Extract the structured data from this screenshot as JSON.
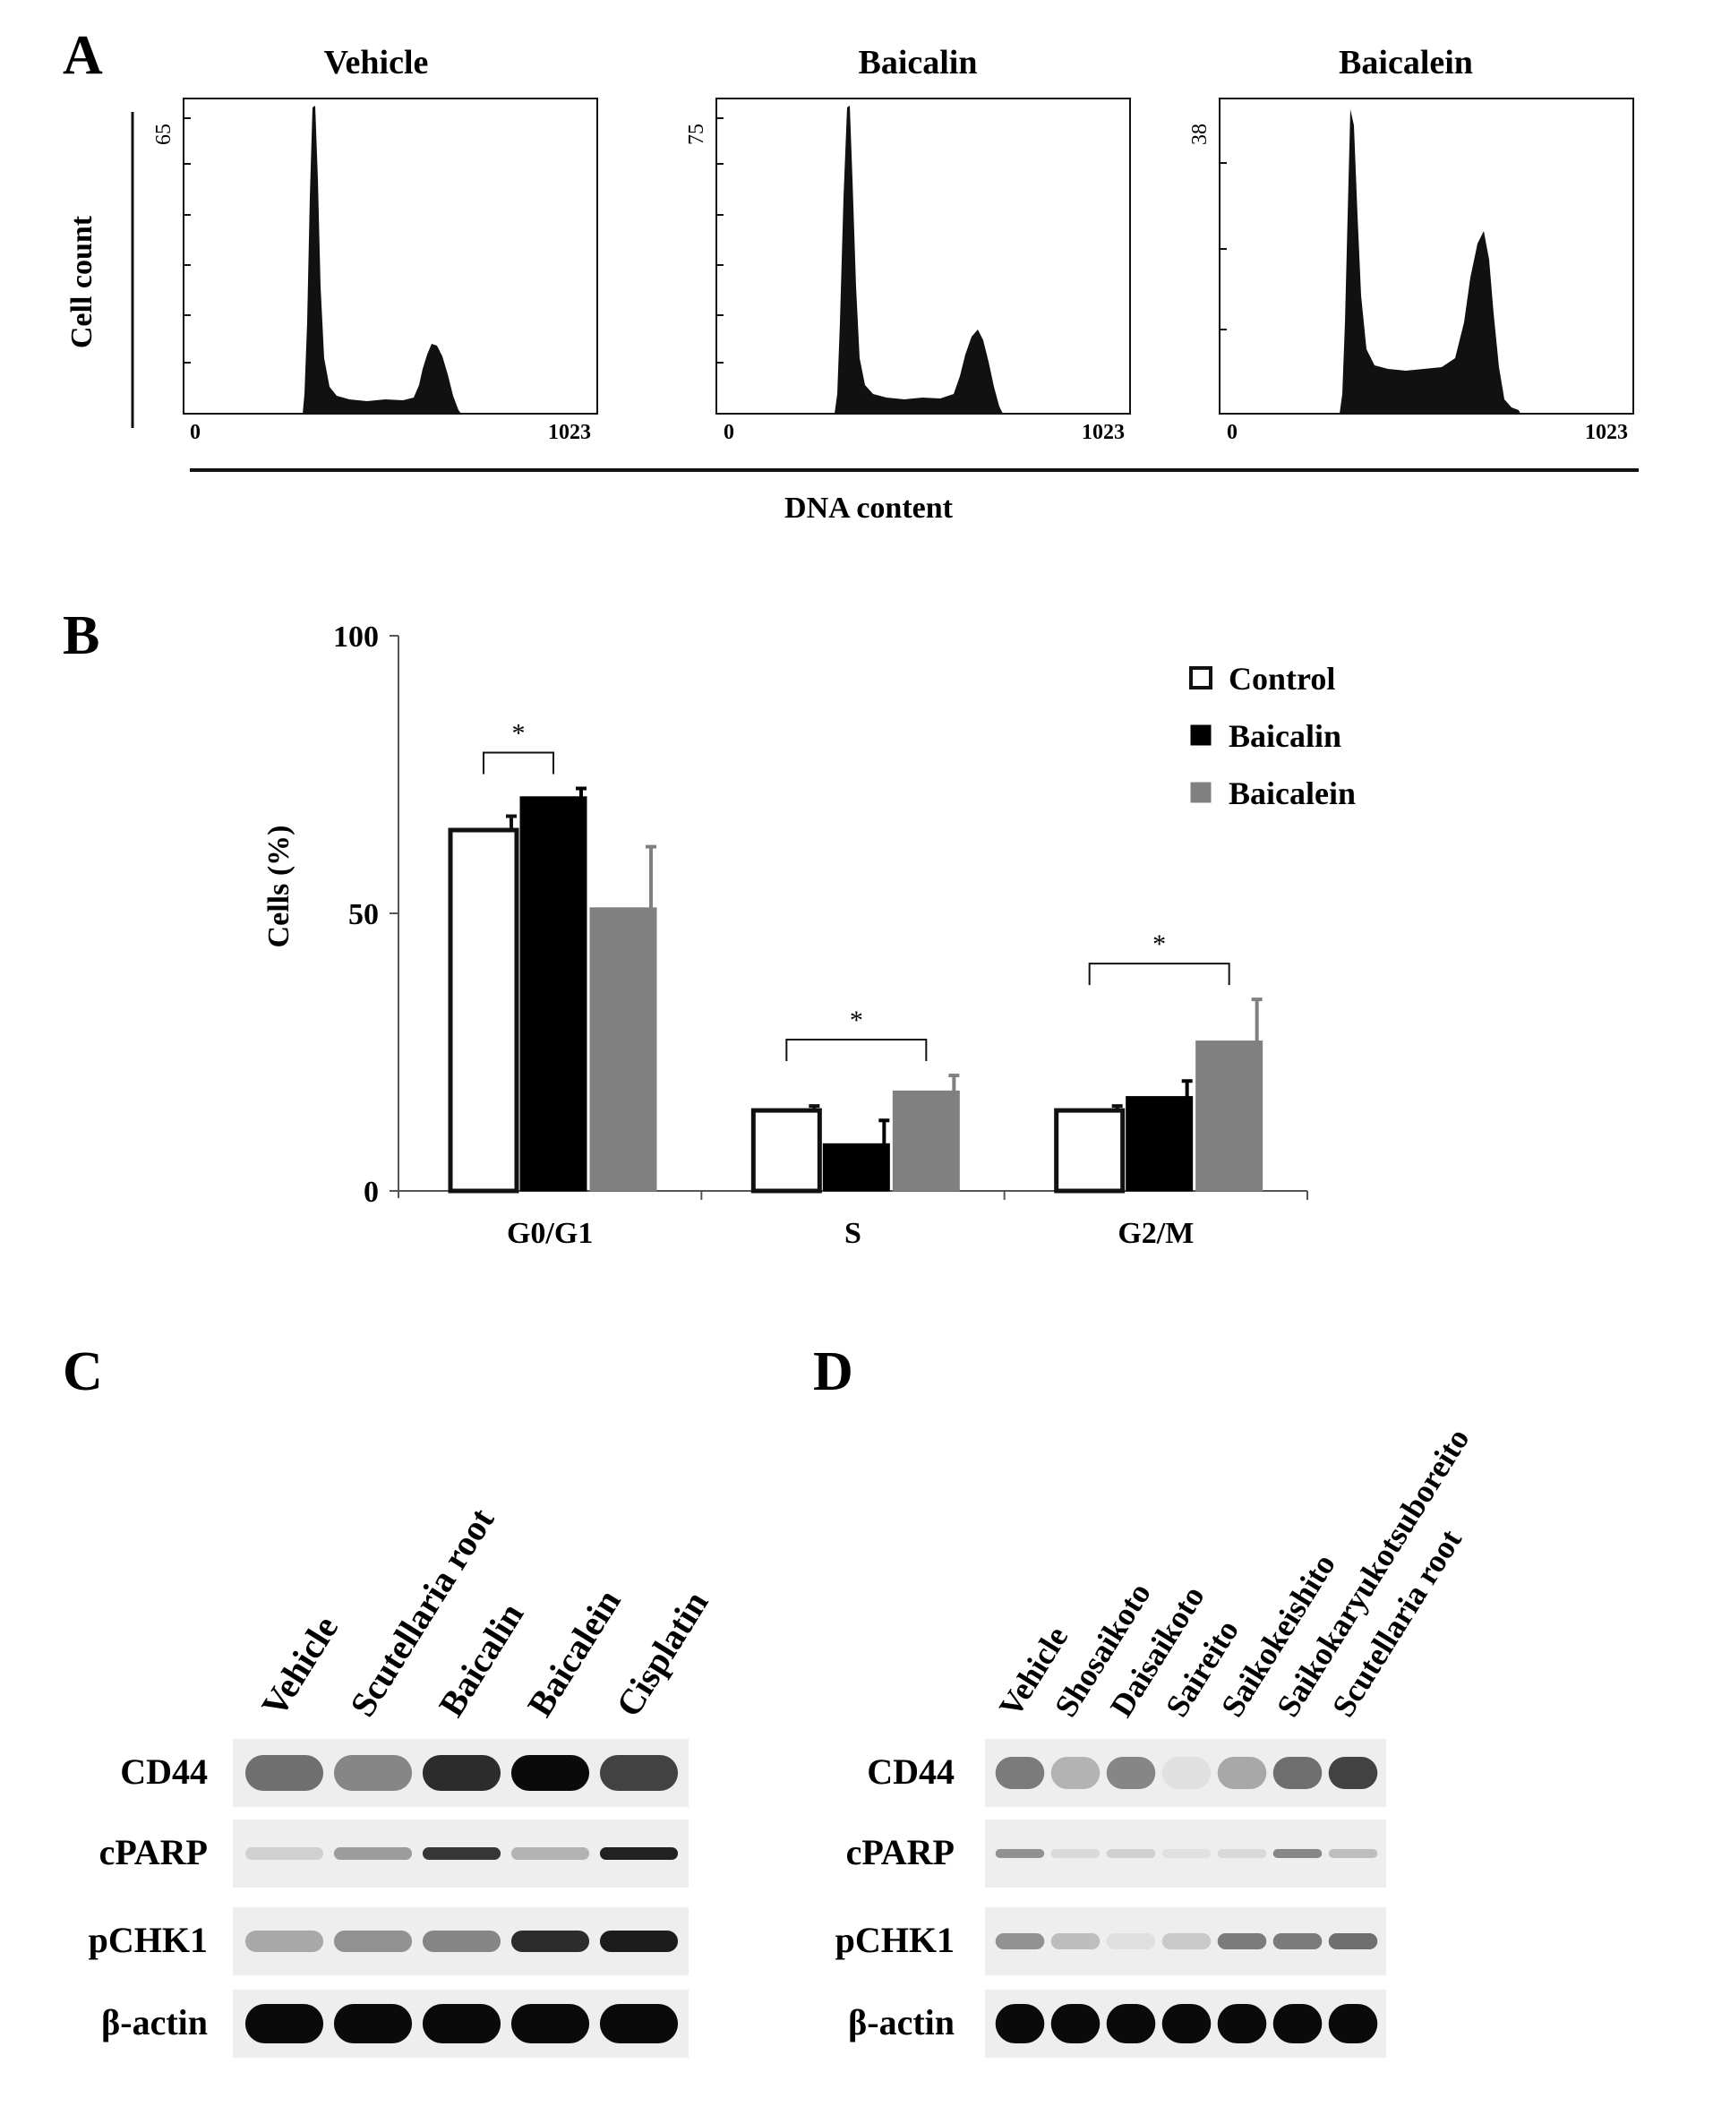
{
  "figure": {
    "panels": {
      "A": {
        "label": "A",
        "titles": [
          "Vehicle",
          "Baicalin",
          "Baicalein"
        ],
        "ymax_labels": [
          "65",
          "75",
          "38"
        ],
        "x_min_label": "0",
        "x_max_label": "1023",
        "ylabel": "Cell count",
        "xlabel": "DNA content"
      },
      "B": {
        "label": "B"
      },
      "C": {
        "label": "C",
        "lanes": [
          "Vehicle",
          "Scutellaria root",
          "Baicalin",
          "Baicalein",
          "Cisplatin"
        ],
        "rows": [
          "CD44",
          "cPARP",
          "pCHK1",
          "β-actin"
        ]
      },
      "D": {
        "label": "D",
        "lanes": [
          "Vehicle",
          "Shosaikoto",
          "Daisaikoto",
          "Saireito",
          "Saikokeishito",
          "Saikokaryukotsuboreito",
          "Scutellaria root"
        ],
        "rows": [
          "CD44",
          "cPARP",
          "pCHK1",
          "β-actin"
        ]
      }
    }
  },
  "chart_data": [
    {
      "type": "bar",
      "panel": "B",
      "categories": [
        "G0/G1",
        "S",
        "G2/M"
      ],
      "series": [
        {
          "name": "Control",
          "values": [
            65,
            14.5,
            14.5
          ],
          "errors": [
            2.5,
            0.8,
            0.8
          ],
          "color": "#ffffff"
        },
        {
          "name": "Baicalin",
          "values": [
            71,
            8.5,
            17
          ],
          "errors": [
            1.5,
            4.2,
            2.8
          ],
          "color": "#000000"
        },
        {
          "name": "Baicalein",
          "values": [
            51,
            18,
            27
          ],
          "errors": [
            11,
            2.8,
            7.5
          ],
          "color": "#808080"
        }
      ],
      "ylabel": "Cells (%)",
      "ylim": [
        0,
        100
      ],
      "yticks": [
        "0",
        "50",
        "100"
      ],
      "legend": "top-right",
      "significance": [
        {
          "category": "G0/G1",
          "between": [
            "Control",
            "Baicalin"
          ],
          "label": "*"
        },
        {
          "category": "S",
          "between": [
            "Control",
            "Baicalein"
          ],
          "label": "*"
        },
        {
          "category": "G2/M",
          "between": [
            "Control",
            "Baicalein"
          ],
          "label": "*"
        }
      ]
    }
  ]
}
